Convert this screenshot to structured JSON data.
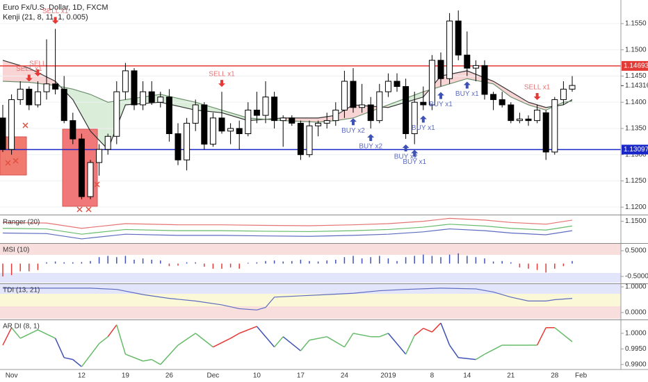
{
  "header": {
    "symbol": "Euro Fx/U.S. Dollar, 1D, FXCM",
    "indicator": "Kenji (21, 8, 11, 1, 0.005)"
  },
  "chart_data": [
    {
      "type": "candlestick",
      "categories": [
        null,
        "Nov",
        null,
        null,
        null,
        null,
        null,
        null,
        null,
        "12",
        null,
        null,
        null,
        null,
        "19",
        null,
        null,
        null,
        null,
        "26",
        null,
        null,
        null,
        null,
        "Dec",
        null,
        null,
        null,
        null,
        "10",
        null,
        null,
        null,
        null,
        "17",
        null,
        null,
        null,
        null,
        "24",
        null,
        null,
        null,
        null,
        "2019",
        null,
        null,
        null,
        null,
        "8",
        null,
        null,
        null,
        "14",
        null,
        null,
        null,
        null,
        "21",
        null,
        null,
        null,
        null,
        "28",
        null,
        null,
        "Feb"
      ],
      "open": [
        1.137,
        1.131,
        1.1405,
        1.1425,
        1.1395,
        1.142,
        1.1435,
        1.1425,
        1.1365,
        1.133,
        1.122,
        1.1285,
        1.131,
        1.1335,
        1.142,
        1.146,
        1.1395,
        1.142,
        1.14,
        1.141,
        1.134,
        1.129,
        1.136,
        1.1395,
        1.132,
        1.137,
        1.1345,
        1.135,
        1.134,
        1.1385,
        1.1375,
        1.141,
        1.1365,
        1.137,
        1.136,
        1.13,
        1.1355,
        1.136,
        1.1365,
        1.1385,
        1.144,
        1.139,
        1.1395,
        1.1365,
        1.142,
        1.144,
        1.143,
        1.134,
        1.14,
        1.1395,
        1.148,
        1.1445,
        1.1555,
        1.149,
        1.1465,
        1.147,
        1.1415,
        1.1405,
        1.1395,
        1.1365,
        1.1368,
        1.1365,
        1.138,
        1.1305,
        1.1405,
        1.1425,
        null
      ],
      "high": [
        1.1395,
        1.1415,
        1.144,
        1.143,
        1.144,
        1.152,
        1.154,
        1.145,
        1.138,
        1.134,
        1.129,
        1.132,
        1.134,
        1.144,
        1.1475,
        1.1465,
        1.144,
        1.144,
        1.142,
        1.1425,
        1.136,
        1.137,
        1.1405,
        1.14,
        1.138,
        1.142,
        1.136,
        1.1365,
        1.14,
        1.142,
        1.144,
        1.142,
        1.1375,
        1.1375,
        1.1365,
        1.1365,
        1.1365,
        1.138,
        1.14,
        1.146,
        1.1465,
        1.1435,
        1.141,
        1.1435,
        1.1455,
        1.1455,
        1.1445,
        1.142,
        1.143,
        1.149,
        1.1495,
        1.157,
        1.1575,
        1.1535,
        1.148,
        1.148,
        1.142,
        1.142,
        1.14,
        1.138,
        1.1375,
        1.1395,
        1.1385,
        1.141,
        1.144,
        1.145,
        null
      ],
      "low": [
        1.1305,
        1.13,
        1.1395,
        1.1385,
        1.139,
        1.1405,
        1.1415,
        1.136,
        1.132,
        1.1215,
        1.1215,
        1.126,
        1.13,
        1.132,
        1.1405,
        1.1385,
        1.1385,
        1.1395,
        1.139,
        1.1325,
        1.128,
        1.127,
        1.1345,
        1.131,
        1.1315,
        1.134,
        1.132,
        1.131,
        1.1335,
        1.136,
        1.136,
        1.135,
        1.1315,
        1.1355,
        1.129,
        1.1295,
        1.1335,
        1.135,
        1.1355,
        1.137,
        1.138,
        1.138,
        1.135,
        1.136,
        1.141,
        1.142,
        1.133,
        1.132,
        1.1385,
        1.1385,
        1.143,
        1.1435,
        1.148,
        1.145,
        1.144,
        1.1405,
        1.1385,
        1.139,
        1.136,
        1.136,
        1.1355,
        1.136,
        1.129,
        1.13,
        1.1395,
        1.142,
        null
      ],
      "close": [
        1.131,
        1.1405,
        1.1425,
        1.1395,
        1.142,
        1.1435,
        1.1425,
        1.1365,
        1.133,
        1.122,
        1.1285,
        1.131,
        1.1335,
        1.142,
        1.146,
        1.1395,
        1.142,
        1.14,
        1.141,
        1.134,
        1.129,
        1.136,
        1.1395,
        1.132,
        1.137,
        1.1345,
        1.135,
        1.134,
        1.1385,
        1.1375,
        1.141,
        1.1365,
        1.137,
        1.136,
        1.13,
        1.1355,
        1.136,
        1.1365,
        1.1385,
        1.144,
        1.139,
        1.1395,
        1.1365,
        1.142,
        1.144,
        1.143,
        1.134,
        1.14,
        1.1395,
        1.148,
        1.1445,
        1.1555,
        1.149,
        1.1465,
        1.147,
        1.1415,
        1.1405,
        1.1395,
        1.1365,
        1.1368,
        1.1365,
        1.1385,
        1.1305,
        1.1405,
        1.1425,
        1.1432,
        null
      ],
      "up_color": "#ffffff",
      "down_color": "#000000",
      "ylim": [
        1.1187,
        1.1595
      ],
      "yticks": [
        {
          "value": 1.12,
          "label": "1.1200"
        },
        {
          "value": 1.125,
          "label": "1.1250"
        },
        {
          "value": 1.13,
          "label": "1.1300"
        },
        {
          "value": 1.135,
          "label": "1.1350"
        },
        {
          "value": 1.14,
          "label": "1.1400"
        },
        {
          "value": 1.145,
          "label": "1.1450"
        },
        {
          "value": 1.15,
          "label": "1.1500"
        },
        {
          "value": 1.155,
          "label": "1.1550"
        }
      ],
      "grid": true,
      "lines": [
        {
          "color": "#333333",
          "x": [
            0,
            3,
            6,
            8,
            10,
            12,
            14,
            18,
            22,
            25,
            28,
            32,
            36,
            38,
            40,
            44,
            48,
            50,
            53,
            56,
            58,
            60,
            62,
            64,
            65
          ],
          "values": [
            1.148,
            1.1465,
            1.144,
            1.1405,
            1.1345,
            1.131,
            1.1395,
            1.14,
            1.1385,
            1.138,
            1.1365,
            1.137,
            1.137,
            1.1375,
            1.1395,
            1.139,
            1.141,
            1.145,
            1.146,
            1.144,
            1.142,
            1.14,
            1.139,
            1.1395,
            1.1405
          ]
        },
        {
          "color": "#6d8f6d",
          "x": [
            0,
            3,
            6,
            8,
            10,
            12,
            14,
            18,
            22,
            25,
            28,
            32,
            36,
            38,
            40,
            44,
            48,
            50,
            53,
            56,
            58,
            60,
            62,
            64,
            65
          ],
          "values": [
            1.144,
            1.1438,
            1.1432,
            1.1425,
            1.1415,
            1.14,
            1.1405,
            1.1415,
            1.14,
            1.1385,
            1.137,
            1.1365,
            1.1362,
            1.1365,
            1.137,
            1.1395,
            1.142,
            1.143,
            1.1445,
            1.1435,
            1.141,
            1.1395,
            1.1385,
            1.14,
            1.1402
          ]
        }
      ],
      "fill_up": "#f6c9c9",
      "fill_down": "#cfe8cf",
      "hlines": [
        {
          "value": 1.14693,
          "label": "1.14693",
          "color": "#e53935"
        },
        {
          "value": 1.13097,
          "label": "1.13097",
          "color": "#1a27c8"
        }
      ],
      "last_price": {
        "value": 1.14316,
        "label": "1.14316"
      },
      "annotations": [
        {
          "text": "SELL x1",
          "index": 3,
          "side": "sell"
        },
        {
          "text": "SELL",
          "index": 4,
          "side": "sell"
        },
        {
          "text": "SELL x1",
          "index": 6,
          "side": "sell"
        },
        {
          "text": "SELL x1",
          "index": 25,
          "side": "sell"
        },
        {
          "text": "SELL x1",
          "index": 61,
          "side": "sell"
        },
        {
          "text": "BUY x2",
          "index": 40,
          "side": "buy"
        },
        {
          "text": "BUY x2",
          "index": 42,
          "side": "buy"
        },
        {
          "text": "BUY x2",
          "index": 46,
          "side": "buy"
        },
        {
          "text": "BUY x1",
          "index": 47,
          "side": "buy"
        },
        {
          "text": "BUY x1",
          "index": 48,
          "side": "buy"
        },
        {
          "text": "BUY x1",
          "index": 50,
          "side": "buy"
        },
        {
          "text": "BUY x1",
          "index": 53,
          "side": "buy"
        }
      ],
      "sell_color": "#e53935",
      "buy_color": "#3f51b5"
    },
    {
      "type": "line",
      "title": "Ranger (20)",
      "ylim": [
        1.132,
        1.1545
      ],
      "yticks": [
        {
          "value": 1.15,
          "label": "1.1500"
        }
      ],
      "series": [
        {
          "color": "#e57373",
          "x": [
            0,
            5,
            9,
            14,
            20,
            25,
            30,
            35,
            40,
            44,
            48,
            51,
            55,
            58,
            62,
            65
          ],
          "values": [
            1.149,
            1.1485,
            1.144,
            1.148,
            1.147,
            1.147,
            1.1465,
            1.1462,
            1.147,
            1.148,
            1.15,
            1.1525,
            1.151,
            1.149,
            1.1475,
            1.151
          ]
        },
        {
          "color": "#66bb6a",
          "x": [
            0,
            5,
            9,
            14,
            20,
            25,
            30,
            35,
            40,
            44,
            48,
            51,
            55,
            58,
            62,
            65
          ],
          "values": [
            1.144,
            1.1435,
            1.139,
            1.143,
            1.142,
            1.142,
            1.1415,
            1.1412,
            1.142,
            1.143,
            1.145,
            1.1475,
            1.146,
            1.144,
            1.1425,
            1.146
          ]
        },
        {
          "color": "#5c6bc0",
          "x": [
            0,
            5,
            9,
            14,
            20,
            25,
            30,
            35,
            40,
            44,
            48,
            51,
            55,
            58,
            62,
            65
          ],
          "values": [
            1.14,
            1.1395,
            1.135,
            1.139,
            1.138,
            1.138,
            1.1375,
            1.1372,
            1.138,
            1.139,
            1.141,
            1.1435,
            1.142,
            1.14,
            1.1385,
            1.142
          ]
        }
      ]
    },
    {
      "type": "bar",
      "title": "MSI (10)",
      "ylim": [
        -0.743,
        0.77
      ],
      "yticks": [
        {
          "value": 0.5,
          "label": "0.5000"
        },
        {
          "value": -0.5,
          "label": "-0.5000"
        }
      ],
      "values": [
        -0.5,
        -0.45,
        -0.3,
        -0.3,
        -0.25,
        0.05,
        0.08,
        0.05,
        0.05,
        0.06,
        0.1,
        0.25,
        0.3,
        0.25,
        0.3,
        0.15,
        0.2,
        0.15,
        0.12,
        -0.1,
        -0.08,
        0.05,
        0.05,
        -0.12,
        -0.2,
        -0.2,
        -0.15,
        -0.2,
        0.03,
        0.05,
        0.1,
        0.12,
        0.08,
        0.1,
        0.15,
        0.1,
        0.08,
        0.12,
        0.15,
        0.25,
        0.3,
        0.2,
        0.25,
        0.3,
        0.2,
        0.1,
        0.25,
        0.3,
        0.35,
        0.3,
        0.25,
        0.35,
        0.4,
        0.3,
        0.25,
        0.2,
        0.08,
        0.1,
        0.05,
        -0.15,
        -0.2,
        -0.25,
        -0.35,
        -0.2,
        -0.1,
        0.1
      ],
      "pos_color": "#3f51b5",
      "neg_color": "#e53935"
    },
    {
      "type": "line",
      "title": "TDI (13, 21)",
      "ylim": [
        -0.243,
        1.108
      ],
      "yticks": [
        {
          "value": 1,
          "label": "1.0000"
        },
        {
          "value": 0,
          "label": "0.0000"
        }
      ],
      "series": [
        {
          "color": "#5c6bc0",
          "x": [
            0,
            5,
            10,
            13,
            16,
            19,
            22,
            25,
            27,
            29,
            30,
            31,
            34,
            37,
            40,
            43,
            46,
            50,
            54,
            56,
            58,
            60,
            62,
            63,
            65
          ],
          "values": [
            0.95,
            0.95,
            0.95,
            0.9,
            0.7,
            0.55,
            0.45,
            0.3,
            0.15,
            0.1,
            0.2,
            0.6,
            0.65,
            0.7,
            0.75,
            0.85,
            0.9,
            0.95,
            0.92,
            0.8,
            0.6,
            0.45,
            0.45,
            0.5,
            0.55
          ]
        }
      ]
    },
    {
      "type": "line",
      "title": "AR DI (8, 1)",
      "ylim": [
        0.9884,
        1.0042
      ],
      "yticks": [
        {
          "value": 0.99,
          "label": "0.9900"
        },
        {
          "value": 0.995,
          "label": "0.9950"
        },
        {
          "value": 1,
          "label": "1.0000"
        }
      ],
      "series": [
        {
          "x": [
            0,
            1,
            2,
            4,
            6,
            7,
            8,
            9,
            11,
            12,
            13,
            14,
            16,
            17,
            18,
            20,
            22,
            24,
            26,
            27,
            29,
            31,
            32,
            34,
            35,
            37,
            39,
            40,
            42,
            43,
            44,
            46,
            47,
            48,
            49,
            50,
            51,
            52,
            54,
            55,
            57,
            60,
            61,
            62,
            63,
            65
          ],
          "values": [
            0.9962,
            1.0018,
            0.9984,
            1.0011,
            0.9984,
            0.9922,
            0.9916,
            0.9893,
            0.9967,
            0.9989,
            1.0027,
            0.9933,
            0.9911,
            0.9916,
            0.99,
            0.9962,
            1.0,
            0.9956,
            0.9984,
            1.0,
            1.0022,
            0.9956,
            0.9989,
            0.9944,
            0.9978,
            0.9989,
            0.9956,
            1.0,
            0.9989,
            0.9989,
            1.0,
            0.9933,
            0.9993,
            1.0016,
            1.0004,
            1.0033,
            0.9962,
            0.9922,
            0.9916,
            0.9933,
            0.9962,
            0.9962,
            0.9962,
            1.0018,
            1.0018,
            0.9973
          ],
          "point_colors": [
            "#66bb6a",
            "#e53935",
            "#66bb6a",
            "#66bb6a",
            "#66bb6a",
            "#3f51b5",
            "#3f51b5",
            "#3f51b5",
            "#66bb6a",
            "#66bb6a",
            "#e53935",
            "#66bb6a",
            "#66bb6a",
            "#66bb6a",
            "#66bb6a",
            "#66bb6a",
            "#66bb6a",
            "#66bb6a",
            "#e53935",
            "#e53935",
            "#e53935",
            "#3f51b5",
            "#66bb6a",
            "#3f51b5",
            "#66bb6a",
            "#66bb6a",
            "#66bb6a",
            "#66bb6a",
            "#66bb6a",
            "#66bb6a",
            "#66bb6a",
            "#3f51b5",
            "#66bb6a",
            "#e53935",
            "#e53935",
            "#e53935",
            "#3f51b5",
            "#3f51b5",
            "#3f51b5",
            "#66bb6a",
            "#66bb6a",
            "#66bb6a",
            "#66bb6a",
            "#e53935",
            "#e53935",
            "#66bb6a"
          ]
        }
      ]
    }
  ]
}
